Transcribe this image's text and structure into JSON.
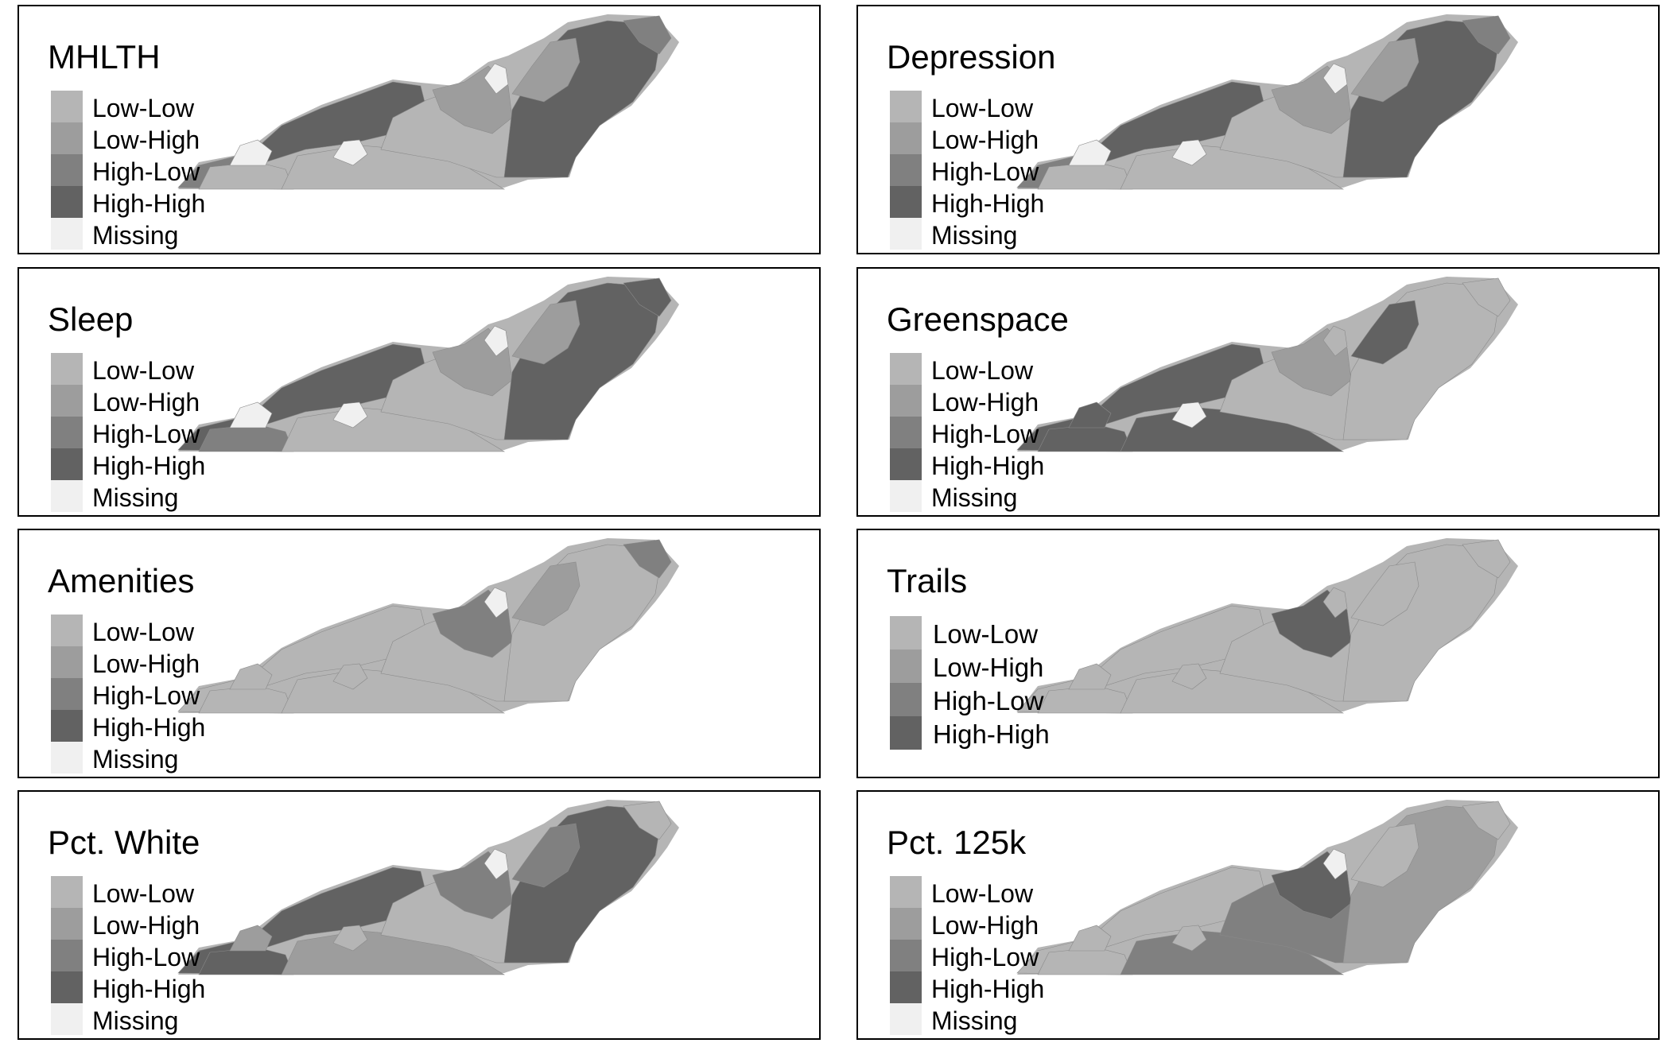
{
  "colors": {
    "Low-Low": "#b5b5b5",
    "Low-High": "#9d9d9d",
    "High-Low": "#808080",
    "High-High": "#626262",
    "Missing": "#f0f0f0"
  },
  "panels": [
    {
      "title": "MHLTH",
      "legend": [
        "Low-Low",
        "Low-High",
        "High-Low",
        "High-High",
        "Missing"
      ],
      "regions": {
        "west": "High-Low",
        "west2": "Low-Low",
        "southcenter": "Low-Low",
        "ridge": "High-High",
        "center": "Low-Low",
        "centerhigh": "Low-High",
        "northeast": "High-High",
        "nearnortheast": "Low-High",
        "farnortheast": "High-Low",
        "blankwest": "Missing",
        "blankcenter": "Missing",
        "blanknorth": "Missing"
      }
    },
    {
      "title": "Depression",
      "legend": [
        "Low-Low",
        "Low-High",
        "High-Low",
        "High-High",
        "Missing"
      ],
      "regions": {
        "west": "High-Low",
        "west2": "Low-Low",
        "southcenter": "Low-Low",
        "ridge": "High-High",
        "center": "Low-Low",
        "centerhigh": "Low-High",
        "northeast": "High-High",
        "nearnortheast": "Low-High",
        "farnortheast": "High-Low",
        "blankwest": "Missing",
        "blankcenter": "Missing",
        "blanknorth": "Missing"
      }
    },
    {
      "title": "Sleep",
      "legend": [
        "Low-Low",
        "Low-High",
        "High-Low",
        "High-High",
        "Missing"
      ],
      "regions": {
        "west": "High-High",
        "west2": "High-Low",
        "southcenter": "Low-Low",
        "ridge": "High-High",
        "center": "Low-Low",
        "centerhigh": "Low-High",
        "northeast": "High-High",
        "nearnortheast": "Low-High",
        "farnortheast": "High-High",
        "blankwest": "Missing",
        "blankcenter": "Missing",
        "blanknorth": "Missing"
      }
    },
    {
      "title": "Greenspace",
      "legend": [
        "Low-Low",
        "Low-High",
        "High-Low",
        "High-High",
        "Missing"
      ],
      "regions": {
        "west": "High-High",
        "west2": "High-High",
        "southcenter": "High-High",
        "ridge": "High-High",
        "center": "Low-Low",
        "centerhigh": "Low-High",
        "northeast": "Low-Low",
        "nearnortheast": "High-High",
        "farnortheast": "Low-Low",
        "blankwest": "High-High",
        "blankcenter": "Missing",
        "blanknorth": "Low-Low"
      }
    },
    {
      "title": "Amenities",
      "legend": [
        "Low-Low",
        "Low-High",
        "High-Low",
        "High-High",
        "Missing"
      ],
      "regions": {
        "west": "Low-Low",
        "west2": "Low-Low",
        "southcenter": "Low-Low",
        "ridge": "Low-Low",
        "center": "Low-Low",
        "centerhigh": "High-Low",
        "northeast": "Low-Low",
        "nearnortheast": "Low-High",
        "farnortheast": "High-Low",
        "blankwest": "Low-Low",
        "blankcenter": "Low-Low",
        "blanknorth": "Missing"
      }
    },
    {
      "title": "Trails",
      "legend": [
        "Low-Low",
        "Low-High",
        "High-Low",
        "High-High"
      ],
      "big": true,
      "regions": {
        "west": "Low-Low",
        "west2": "Low-Low",
        "southcenter": "Low-Low",
        "ridge": "Low-Low",
        "center": "Low-Low",
        "centerhigh": "High-High",
        "northeast": "Low-Low",
        "nearnortheast": "Low-Low",
        "farnortheast": "Low-Low",
        "blankwest": "Low-Low",
        "blankcenter": "Low-Low",
        "blanknorth": "Low-Low"
      }
    },
    {
      "title": "Pct. White",
      "legend": [
        "Low-Low",
        "Low-High",
        "High-Low",
        "High-High",
        "Missing"
      ],
      "regions": {
        "west": "High-High",
        "west2": "High-High",
        "southcenter": "Low-High",
        "ridge": "High-High",
        "center": "Low-Low",
        "centerhigh": "High-Low",
        "northeast": "High-High",
        "nearnortheast": "High-Low",
        "farnortheast": "Low-Low",
        "blankwest": "Low-High",
        "blankcenter": "Low-Low",
        "blanknorth": "Missing"
      }
    },
    {
      "title": "Pct. 125k",
      "legend": [
        "Low-Low",
        "Low-High",
        "High-Low",
        "High-High",
        "Missing"
      ],
      "regions": {
        "west": "Low-Low",
        "west2": "Low-Low",
        "southcenter": "High-Low",
        "ridge": "Low-Low",
        "center": "High-Low",
        "centerhigh": "High-High",
        "northeast": "Low-High",
        "nearnortheast": "Low-Low",
        "farnortheast": "Low-Low",
        "blankwest": "Low-Low",
        "blankcenter": "Low-Low",
        "blanknorth": "Missing"
      }
    }
  ]
}
